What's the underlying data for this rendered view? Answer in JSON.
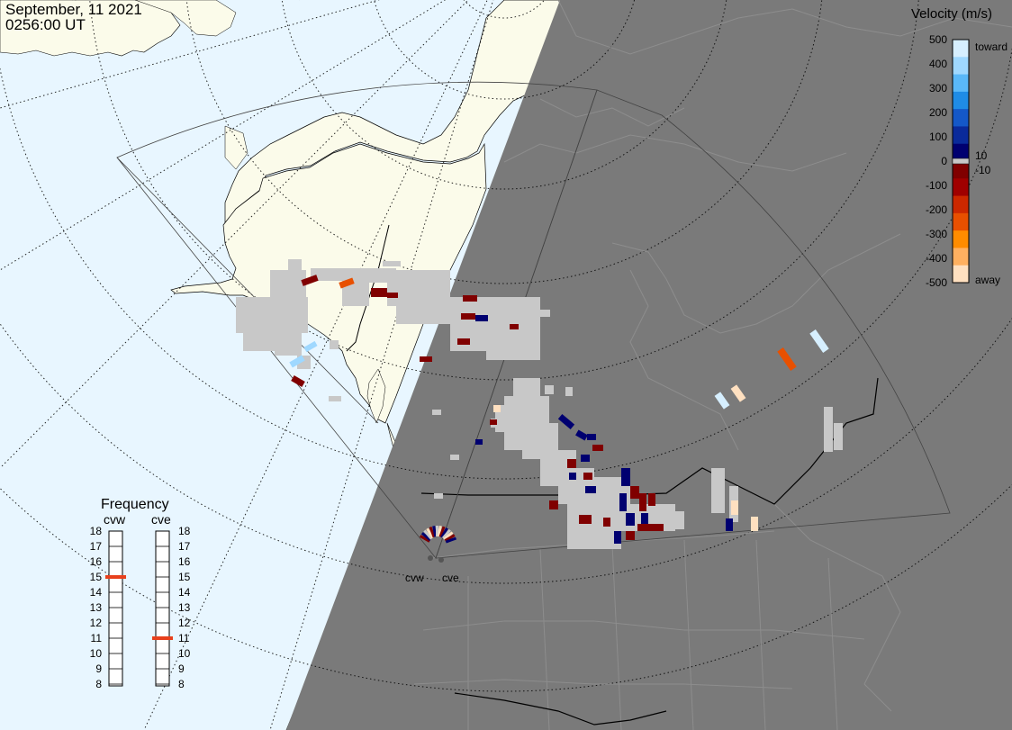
{
  "header": {
    "date": "September, 11 2021",
    "time": "0256:00 UT"
  },
  "colors": {
    "ocean": "#e8f6ff",
    "land": "#fbfbea",
    "night": "#7a7a7a",
    "ground_scatter": "#c8c8c8",
    "border": "#000000"
  },
  "colorbar": {
    "title": "Velocity (m/s)",
    "ticks": [
      "500",
      "400",
      "300",
      "200",
      "100",
      "0",
      "-100",
      "-200",
      "-300",
      "-400",
      "-500"
    ],
    "threshold_pos": "10",
    "threshold_neg": "-10",
    "label_top": "toward",
    "label_bottom": "away",
    "colors_top_to_bottom": [
      "#d6efff",
      "#9fd8ff",
      "#5ab8f8",
      "#1f8ce6",
      "#1458c8",
      "#0a2a9a",
      "#000070",
      "#800000",
      "#a00000",
      "#cc2800",
      "#e85000",
      "#ff8c00",
      "#ffb060",
      "#ffe0c0"
    ]
  },
  "frequency_panel": {
    "title": "Frequency",
    "radar_left": "cvw",
    "radar_right": "cve",
    "scale": [
      "18",
      "17",
      "16",
      "15",
      "14",
      "13",
      "12",
      "11",
      "10",
      "9",
      "8"
    ],
    "cvw_mhz": 15,
    "cve_mhz": 11,
    "marker_color": "#e8401c"
  },
  "radar_sites": {
    "west": "cvw",
    "east": "cve"
  }
}
